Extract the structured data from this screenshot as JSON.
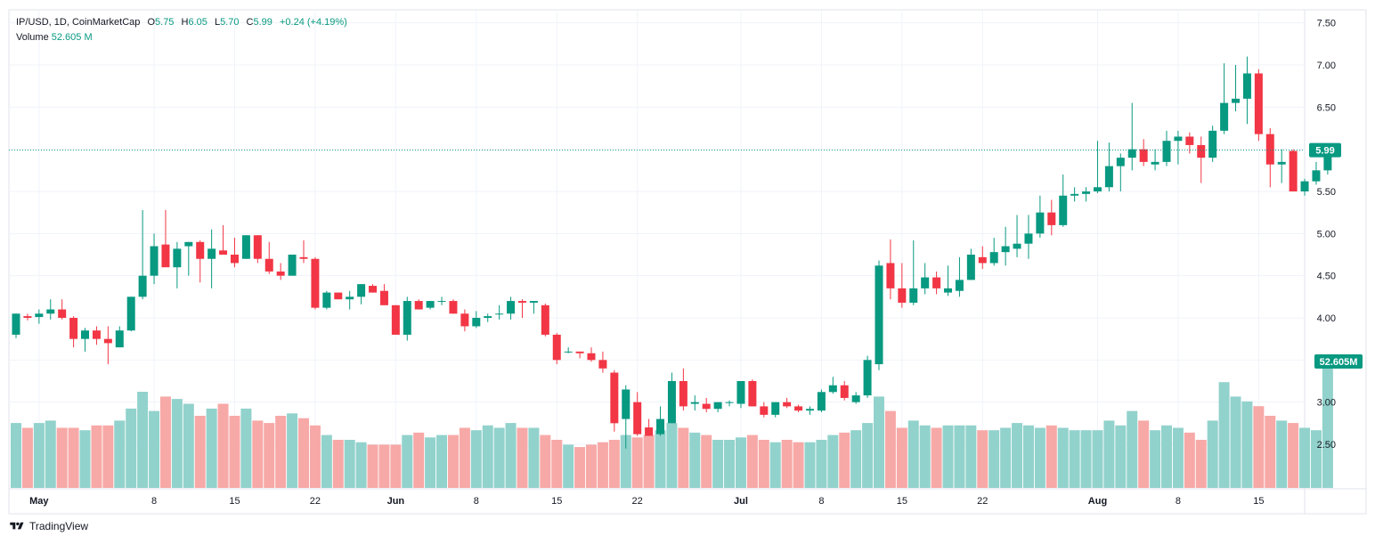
{
  "legend": {
    "symbol_line": "IP/USD, 1D, CoinMarketCap",
    "open_label": "O",
    "open": "5.75",
    "high_label": "H",
    "high": "6.05",
    "low_label": "L",
    "low": "5.70",
    "close_label": "C",
    "close": "5.99",
    "change": "+0.24 (+4.19%)",
    "volume_label": "Volume",
    "volume": "52.605 M"
  },
  "footer": {
    "brand": "TradingView"
  },
  "colors": {
    "up": "#089981",
    "down": "#f23645",
    "vol_up": "#92d2cc",
    "vol_down": "#f7a9a7",
    "grid": "#f0f3fa",
    "text": "#131722"
  },
  "chart_data": {
    "type": "candlestick",
    "last_price_label": "5.99",
    "last_volume_label": "52.605M",
    "y_axis": {
      "ticks": [
        "7.50",
        "7.00",
        "6.50",
        "6.00",
        "5.50",
        "5.00",
        "4.50",
        "4.00",
        "3.50",
        "3.00",
        "2.50"
      ],
      "ylim": [
        2.3,
        7.6
      ]
    },
    "x_axis": {
      "ticks": [
        {
          "label": "May",
          "index": 2
        },
        {
          "label": "8",
          "index": 12
        },
        {
          "label": "15",
          "index": 19
        },
        {
          "label": "22",
          "index": 26
        },
        {
          "label": "Jun",
          "index": 33
        },
        {
          "label": "8",
          "index": 40
        },
        {
          "label": "15",
          "index": 47
        },
        {
          "label": "22",
          "index": 54
        },
        {
          "label": "Jul",
          "index": 63
        },
        {
          "label": "8",
          "index": 70
        },
        {
          "label": "15",
          "index": 77
        },
        {
          "label": "22",
          "index": 84
        },
        {
          "label": "Aug",
          "index": 94
        },
        {
          "label": "8",
          "index": 101
        },
        {
          "label": "15",
          "index": 108
        }
      ]
    },
    "candles": [
      [
        3.8,
        4.05,
        3.76,
        4.05,
        27
      ],
      [
        4.02,
        4.05,
        3.97,
        4.0,
        25
      ],
      [
        4.01,
        4.1,
        3.93,
        4.05,
        27
      ],
      [
        4.05,
        4.22,
        3.98,
        4.1,
        28
      ],
      [
        4.1,
        4.22,
        3.98,
        4.0,
        25
      ],
      [
        4.0,
        4.02,
        3.65,
        3.75,
        25
      ],
      [
        3.75,
        3.88,
        3.6,
        3.85,
        24
      ],
      [
        3.85,
        3.9,
        3.68,
        3.75,
        26
      ],
      [
        3.75,
        3.9,
        3.45,
        3.7,
        26
      ],
      [
        3.65,
        3.9,
        3.65,
        3.85,
        28
      ],
      [
        3.85,
        4.25,
        3.84,
        4.25,
        33
      ],
      [
        4.25,
        5.28,
        4.22,
        4.5,
        40
      ],
      [
        4.5,
        5.0,
        4.4,
        4.85,
        32
      ],
      [
        4.87,
        5.28,
        4.62,
        4.6,
        38
      ],
      [
        4.6,
        4.9,
        4.35,
        4.82,
        37
      ],
      [
        4.85,
        4.9,
        4.5,
        4.9,
        35
      ],
      [
        4.9,
        4.92,
        4.42,
        4.7,
        30
      ],
      [
        4.7,
        5.05,
        4.35,
        4.82,
        33
      ],
      [
        4.8,
        5.1,
        4.75,
        4.75,
        35
      ],
      [
        4.75,
        4.95,
        4.6,
        4.65,
        30
      ],
      [
        4.7,
        4.98,
        4.7,
        4.98,
        33
      ],
      [
        4.98,
        4.98,
        4.65,
        4.7,
        28
      ],
      [
        4.7,
        4.9,
        4.52,
        4.55,
        27
      ],
      [
        4.55,
        4.65,
        4.45,
        4.5,
        30
      ],
      [
        4.5,
        4.75,
        4.5,
        4.75,
        31
      ],
      [
        4.72,
        4.92,
        4.65,
        4.7,
        29
      ],
      [
        4.7,
        4.72,
        4.1,
        4.12,
        26
      ],
      [
        4.12,
        4.32,
        4.1,
        4.3,
        22
      ],
      [
        4.3,
        4.3,
        4.22,
        4.22,
        20
      ],
      [
        4.22,
        4.32,
        4.1,
        4.25,
        20
      ],
      [
        4.25,
        4.4,
        4.16,
        4.4,
        19
      ],
      [
        4.38,
        4.4,
        4.3,
        4.3,
        18
      ],
      [
        4.32,
        4.4,
        4.15,
        4.15,
        18
      ],
      [
        4.15,
        4.15,
        3.8,
        3.8,
        18
      ],
      [
        3.8,
        4.25,
        3.73,
        4.2,
        22
      ],
      [
        4.2,
        4.22,
        4.1,
        4.1,
        23
      ],
      [
        4.12,
        4.2,
        4.1,
        4.2,
        21
      ],
      [
        4.2,
        4.25,
        4.15,
        4.2,
        22
      ],
      [
        4.2,
        4.22,
        4.05,
        4.05,
        22
      ],
      [
        4.05,
        4.1,
        3.84,
        3.9,
        25
      ],
      [
        3.9,
        4.08,
        3.88,
        4.0,
        24
      ],
      [
        4.0,
        4.05,
        3.95,
        4.02,
        26
      ],
      [
        4.05,
        4.15,
        3.98,
        4.05,
        25
      ],
      [
        4.05,
        4.25,
        3.98,
        4.2,
        27
      ],
      [
        4.2,
        4.22,
        4.0,
        4.18,
        25
      ],
      [
        4.18,
        4.2,
        4.05,
        4.2,
        25
      ],
      [
        4.15,
        4.17,
        3.78,
        3.8,
        22
      ],
      [
        3.8,
        3.82,
        3.45,
        3.5,
        20
      ],
      [
        3.6,
        3.65,
        3.58,
        3.6,
        18
      ],
      [
        3.6,
        3.6,
        3.52,
        3.58,
        17
      ],
      [
        3.58,
        3.65,
        3.48,
        3.5,
        18
      ],
      [
        3.5,
        3.6,
        3.35,
        3.4,
        19
      ],
      [
        3.35,
        3.38,
        2.65,
        2.75,
        20
      ],
      [
        2.8,
        3.2,
        2.45,
        3.15,
        22
      ],
      [
        3.0,
        3.12,
        2.6,
        2.62,
        21
      ],
      [
        2.7,
        2.8,
        2.62,
        2.6,
        22
      ],
      [
        2.62,
        2.95,
        2.6,
        2.8,
        24
      ],
      [
        2.75,
        3.35,
        2.75,
        3.25,
        27
      ],
      [
        3.25,
        3.4,
        2.9,
        2.95,
        25
      ],
      [
        2.98,
        3.08,
        2.9,
        3.0,
        23
      ],
      [
        2.98,
        3.05,
        2.88,
        2.92,
        22
      ],
      [
        2.92,
        3.0,
        2.88,
        3.0,
        20
      ],
      [
        3.0,
        3.02,
        2.95,
        3.0,
        20
      ],
      [
        2.98,
        3.25,
        2.93,
        3.25,
        21
      ],
      [
        3.25,
        3.27,
        2.95,
        2.95,
        22
      ],
      [
        2.95,
        3.0,
        2.82,
        2.85,
        20
      ],
      [
        2.85,
        3.0,
        2.82,
        3.0,
        19
      ],
      [
        3.0,
        3.05,
        2.93,
        2.95,
        20
      ],
      [
        2.95,
        2.97,
        2.88,
        2.9,
        19
      ],
      [
        2.9,
        2.95,
        2.85,
        2.92,
        19
      ],
      [
        2.9,
        3.15,
        2.88,
        3.12,
        20
      ],
      [
        3.12,
        3.3,
        3.1,
        3.2,
        22
      ],
      [
        3.2,
        3.25,
        3.02,
        3.05,
        23
      ],
      [
        3.0,
        3.12,
        2.98,
        3.08,
        24
      ],
      [
        3.08,
        3.55,
        3.05,
        3.5,
        27
      ],
      [
        3.45,
        4.68,
        3.38,
        4.62,
        38
      ],
      [
        4.65,
        4.93,
        4.22,
        4.35,
        32
      ],
      [
        4.35,
        4.65,
        4.12,
        4.18,
        25
      ],
      [
        4.18,
        4.92,
        4.15,
        4.35,
        28
      ],
      [
        4.35,
        4.65,
        4.28,
        4.48,
        26
      ],
      [
        4.48,
        4.55,
        4.28,
        4.35,
        25
      ],
      [
        4.3,
        4.62,
        4.26,
        4.35,
        26
      ],
      [
        4.32,
        4.72,
        4.25,
        4.45,
        26
      ],
      [
        4.45,
        4.82,
        4.45,
        4.75,
        26
      ],
      [
        4.72,
        4.85,
        4.58,
        4.65,
        24
      ],
      [
        4.65,
        4.95,
        4.62,
        4.78,
        24
      ],
      [
        4.78,
        5.08,
        4.62,
        4.85,
        25
      ],
      [
        4.82,
        5.22,
        4.72,
        4.88,
        27
      ],
      [
        4.88,
        5.22,
        4.7,
        5.0,
        26
      ],
      [
        5.0,
        5.45,
        4.95,
        5.25,
        25
      ],
      [
        5.25,
        5.4,
        4.98,
        5.1,
        26
      ],
      [
        5.1,
        5.7,
        5.08,
        5.45,
        25
      ],
      [
        5.45,
        5.55,
        5.38,
        5.47,
        24
      ],
      [
        5.47,
        5.55,
        5.38,
        5.5,
        24
      ],
      [
        5.5,
        6.1,
        5.48,
        5.55,
        24
      ],
      [
        5.55,
        6.08,
        5.5,
        5.8,
        28
      ],
      [
        5.8,
        5.95,
        5.5,
        5.9,
        26
      ],
      [
        5.9,
        6.55,
        5.75,
        6.0,
        32
      ],
      [
        6.0,
        6.12,
        5.8,
        5.85,
        28
      ],
      [
        5.82,
        6.0,
        5.75,
        5.85,
        24
      ],
      [
        5.85,
        6.22,
        5.8,
        6.1,
        26
      ],
      [
        6.1,
        6.22,
        5.82,
        6.15,
        25
      ],
      [
        6.15,
        6.2,
        5.95,
        6.05,
        23
      ],
      [
        6.05,
        6.15,
        5.6,
        5.9,
        20
      ],
      [
        5.9,
        6.28,
        5.85,
        6.22,
        28
      ],
      [
        6.22,
        7.02,
        6.18,
        6.55,
        44
      ],
      [
        6.55,
        7.0,
        6.45,
        6.6,
        38
      ],
      [
        6.6,
        7.1,
        6.3,
        6.9,
        36
      ],
      [
        6.9,
        6.95,
        6.1,
        6.18,
        34
      ],
      [
        6.18,
        6.25,
        5.55,
        5.82,
        30
      ],
      [
        5.82,
        6.0,
        5.6,
        5.85,
        28
      ],
      [
        5.98,
        6.0,
        5.5,
        5.5,
        27
      ],
      [
        5.5,
        5.65,
        5.45,
        5.62,
        25
      ],
      [
        5.62,
        5.85,
        5.58,
        5.75,
        24
      ],
      [
        5.75,
        6.05,
        5.7,
        5.99,
        52.605
      ]
    ]
  }
}
